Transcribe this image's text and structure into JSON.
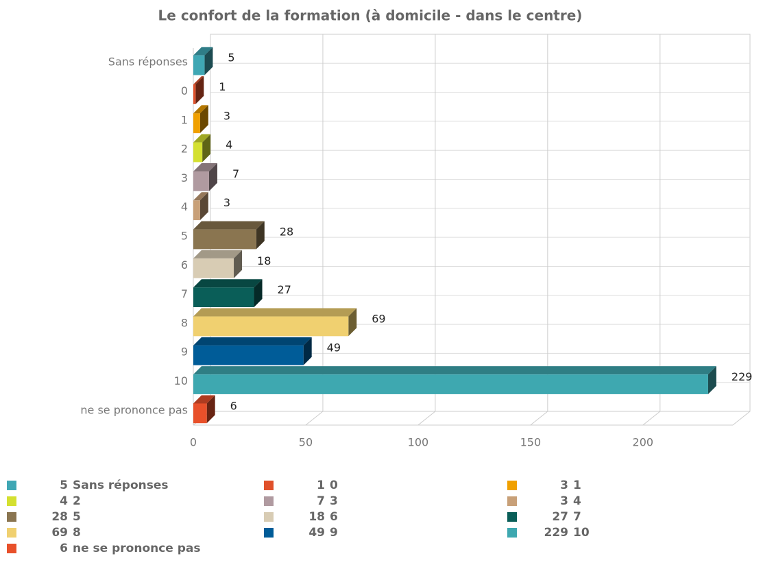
{
  "chart_data": {
    "type": "bar3d-horizontal",
    "title": "Le confort de la formation (à domicile - dans le centre)",
    "categories": [
      "Sans réponses",
      "0",
      "1",
      "2",
      "3",
      "4",
      "5",
      "6",
      "7",
      "8",
      "9",
      "10",
      "ne se prononce pas"
    ],
    "values": [
      5,
      1,
      3,
      4,
      7,
      3,
      28,
      18,
      27,
      69,
      49,
      229,
      6
    ],
    "colors": [
      "#3fa7b4",
      "#e0502a",
      "#f0a000",
      "#d4e030",
      "#b09aa0",
      "#c8a078",
      "#8a7550",
      "#d8ccb4",
      "#0a5e58",
      "#f0d070",
      "#005c98",
      "#3ea8b0",
      "#e8502a"
    ],
    "xlim": [
      0,
      240
    ],
    "xticks": [
      0,
      50,
      100,
      150,
      200
    ],
    "grid": true,
    "legend": "bottom"
  }
}
